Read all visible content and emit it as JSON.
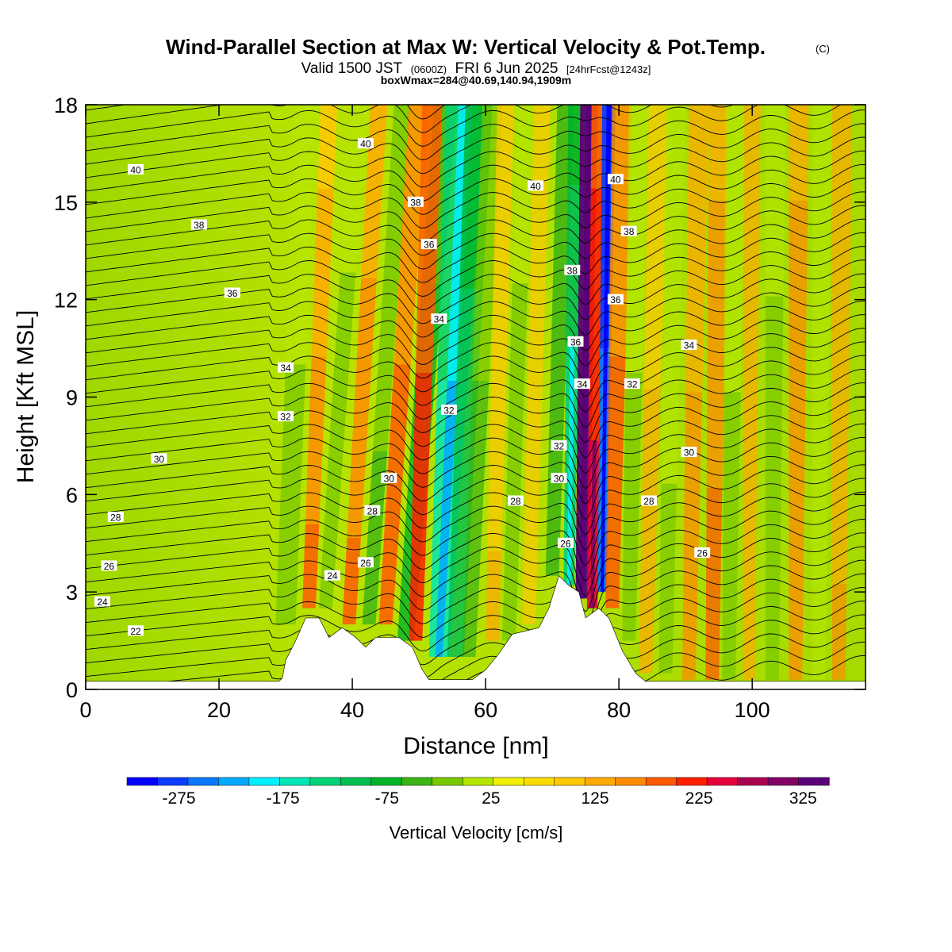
{
  "header": {
    "title": "Wind-Parallel Section at Max W: Vertical Velocity & Pot.Temp.",
    "copyright": "(C)",
    "valid_prefix": "Valid 1500 JST",
    "valid_zulu": "(0600Z)",
    "valid_date": "FRI 6 Jun 2025",
    "forecast_tag": "[24hrFcst@1243z]",
    "box_info": "boxWmax=284@40.69,140.94,1909m"
  },
  "colors": {
    "scale": [
      "#0000ff",
      "#0a3cff",
      "#0a78ff",
      "#00aaff",
      "#00f0ff",
      "#00e6b4",
      "#00d278",
      "#00be50",
      "#00b428",
      "#3cb414",
      "#78c800",
      "#b4e600",
      "#f0f000",
      "#ffdc00",
      "#ffc800",
      "#ffaa00",
      "#ff8c00",
      "#ff5a00",
      "#ff1e00",
      "#e6003c",
      "#aa0050",
      "#820064",
      "#5a0078"
    ],
    "terrain": "#ffffff",
    "contour": "#000000"
  },
  "chart_data": {
    "type": "heatmap",
    "xlabel": "Distance [nm]",
    "ylabel": "Height [Kft MSL]",
    "xlim": [
      0,
      117
    ],
    "ylim": [
      0,
      18
    ],
    "x_ticks": [
      0,
      20,
      40,
      60,
      80,
      100
    ],
    "y_ticks": [
      0,
      3,
      6,
      9,
      12,
      15,
      18
    ],
    "colorbar": {
      "title": "Vertical Velocity [cm/s]",
      "min": -325,
      "max": 350,
      "step": 25,
      "tick_values": [
        -275,
        -175,
        -75,
        25,
        125,
        225,
        325
      ],
      "tick_labels": [
        "-275",
        "-175",
        "-75",
        "25",
        "125",
        "225",
        "325"
      ]
    },
    "terrain_profile": [
      {
        "x": 0,
        "h": 0.25
      },
      {
        "x": 29,
        "h": 0.25
      },
      {
        "x": 29.5,
        "h": 0.35
      },
      {
        "x": 30,
        "h": 0.9
      },
      {
        "x": 31.5,
        "h": 1.5
      },
      {
        "x": 33,
        "h": 2.2
      },
      {
        "x": 35,
        "h": 2.2
      },
      {
        "x": 36.5,
        "h": 1.6
      },
      {
        "x": 38.5,
        "h": 1.9
      },
      {
        "x": 40.5,
        "h": 1.6
      },
      {
        "x": 42,
        "h": 1.3
      },
      {
        "x": 43.5,
        "h": 1.6
      },
      {
        "x": 47,
        "h": 1.6
      },
      {
        "x": 49,
        "h": 1.3
      },
      {
        "x": 50.5,
        "h": 0.6
      },
      {
        "x": 51.5,
        "h": 0.3
      },
      {
        "x": 58,
        "h": 0.3
      },
      {
        "x": 60,
        "h": 0.6
      },
      {
        "x": 62,
        "h": 1.1
      },
      {
        "x": 64,
        "h": 1.7
      },
      {
        "x": 68,
        "h": 1.9
      },
      {
        "x": 69.5,
        "h": 2.5
      },
      {
        "x": 71,
        "h": 3.5
      },
      {
        "x": 72.5,
        "h": 3.2
      },
      {
        "x": 74,
        "h": 3.0
      },
      {
        "x": 75,
        "h": 2.2
      },
      {
        "x": 77,
        "h": 2.5
      },
      {
        "x": 78.5,
        "h": 2.2
      },
      {
        "x": 80.5,
        "h": 1.2
      },
      {
        "x": 82.5,
        "h": 0.5
      },
      {
        "x": 84,
        "h": 0.25
      },
      {
        "x": 117,
        "h": 0.25
      }
    ],
    "contour_labels": [
      {
        "text": "40",
        "x": 7.5,
        "y": 16.0
      },
      {
        "text": "38",
        "x": 17,
        "y": 14.3
      },
      {
        "text": "36",
        "x": 22,
        "y": 12.2
      },
      {
        "text": "34",
        "x": 30,
        "y": 9.9
      },
      {
        "text": "32",
        "x": 30,
        "y": 8.4
      },
      {
        "text": "30",
        "x": 11,
        "y": 7.1
      },
      {
        "text": "28",
        "x": 4.5,
        "y": 5.3
      },
      {
        "text": "26",
        "x": 3.5,
        "y": 3.8
      },
      {
        "text": "24",
        "x": 2.5,
        "y": 2.7
      },
      {
        "text": "22",
        "x": 7.5,
        "y": 1.8
      },
      {
        "text": "24",
        "x": 37,
        "y": 3.5
      },
      {
        "text": "26",
        "x": 42,
        "y": 3.9
      },
      {
        "text": "28",
        "x": 43,
        "y": 5.5
      },
      {
        "text": "30",
        "x": 45.5,
        "y": 6.5
      },
      {
        "text": "40",
        "x": 42,
        "y": 16.8
      },
      {
        "text": "38",
        "x": 49.5,
        "y": 15.0
      },
      {
        "text": "36",
        "x": 51.5,
        "y": 13.7
      },
      {
        "text": "34",
        "x": 53,
        "y": 11.4
      },
      {
        "text": "32",
        "x": 54.5,
        "y": 8.6
      },
      {
        "text": "28",
        "x": 64.5,
        "y": 5.8
      },
      {
        "text": "40",
        "x": 67.5,
        "y": 15.5
      },
      {
        "text": "38",
        "x": 73,
        "y": 12.9
      },
      {
        "text": "36",
        "x": 73.5,
        "y": 10.7
      },
      {
        "text": "34",
        "x": 74.5,
        "y": 9.4
      },
      {
        "text": "32",
        "x": 71,
        "y": 7.5
      },
      {
        "text": "30",
        "x": 71,
        "y": 6.5
      },
      {
        "text": "26",
        "x": 72,
        "y": 4.5
      },
      {
        "text": "40",
        "x": 79.5,
        "y": 15.7
      },
      {
        "text": "38",
        "x": 81.5,
        "y": 14.1
      },
      {
        "text": "36",
        "x": 79.5,
        "y": 12.0
      },
      {
        "text": "34",
        "x": 90.5,
        "y": 10.6
      },
      {
        "text": "32",
        "x": 82,
        "y": 9.4
      },
      {
        "text": "30",
        "x": 90.5,
        "y": 7.3
      },
      {
        "text": "28",
        "x": 84.5,
        "y": 5.8
      },
      {
        "text": "26",
        "x": 92.5,
        "y": 4.2
      }
    ]
  }
}
